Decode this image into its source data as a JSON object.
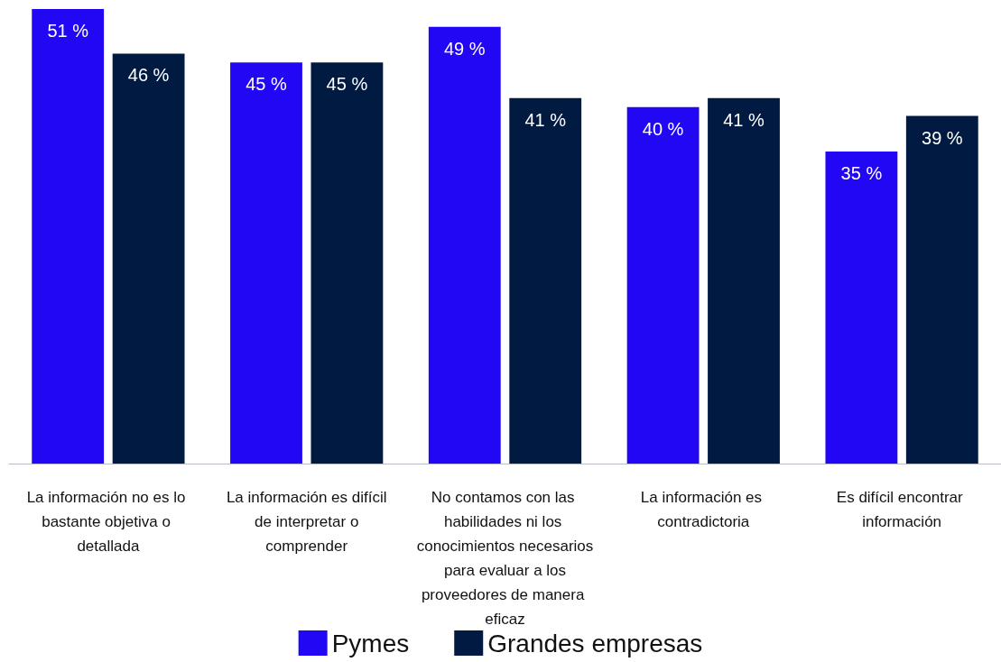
{
  "chart_data": {
    "type": "bar",
    "categories": [
      "La información no es lo bastante objetiva o detallada",
      "La información es difícil de interpretar o comprender",
      "No contamos con las habilidades ni los conocimientos necesarios para evaluar a los proveedores de manera eficaz",
      "La información es contradictoria",
      "Es difícil encontrar información"
    ],
    "series": [
      {
        "name": "Pymes",
        "color": "#2207f5",
        "values": [
          51,
          45,
          49,
          40,
          35
        ],
        "value_labels": [
          "51 %",
          "45 %",
          "49 %",
          "40 %",
          "35 %"
        ]
      },
      {
        "name": "Grandes empresas",
        "color": "#001a42",
        "values": [
          46,
          45,
          41,
          41,
          39
        ],
        "value_labels": [
          "46 %",
          "45 %",
          "41 %",
          "41 %",
          "39 %"
        ]
      }
    ],
    "legend": "bottom"
  }
}
